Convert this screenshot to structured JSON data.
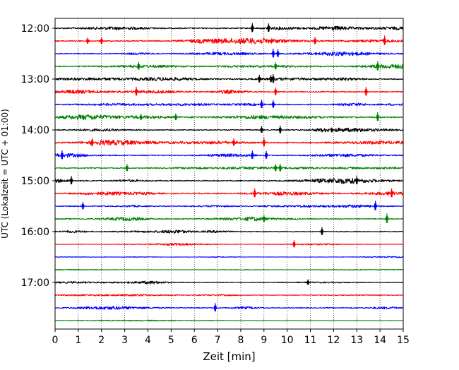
{
  "chart_data": {
    "type": "line",
    "title": "",
    "xlabel": "Zeit  [min]",
    "ylabel": "UTC (Lokalzeit = UTC + 01:00)",
    "xlim": [
      0,
      15
    ],
    "x_ticks": [
      0,
      1,
      2,
      3,
      4,
      5,
      6,
      7,
      8,
      9,
      10,
      11,
      12,
      13,
      14,
      15
    ],
    "x_tick_labels": [
      "0",
      "1",
      "2",
      "3",
      "4",
      "5",
      "6",
      "7",
      "8",
      "9",
      "10",
      "11",
      "12",
      "13",
      "14",
      "15"
    ],
    "y_tick_labels": [
      "12:00",
      "13:00",
      "14:00",
      "15:00",
      "16:00",
      "17:00"
    ],
    "y_tick_row_index": [
      0,
      4,
      8,
      12,
      16,
      20
    ],
    "grid": {
      "vertical_dotted": true,
      "horizontal": false
    },
    "row_interval_minutes": 15,
    "colors_cycle": [
      "#000000",
      "#ff0000",
      "#0000ff",
      "#008000"
    ],
    "series": [
      {
        "start": "12:00",
        "color": "#000000",
        "amplitude": 0.55,
        "spikes": [
          {
            "t": 8.5,
            "a": 1.5
          },
          {
            "t": 9.2,
            "a": 1.4
          }
        ]
      },
      {
        "start": "12:15",
        "color": "#ff0000",
        "amplitude": 0.6,
        "spikes": [
          {
            "t": 1.4,
            "a": 1.0
          },
          {
            "t": 2.0,
            "a": 1.1
          },
          {
            "t": 11.2,
            "a": 1.2
          },
          {
            "t": 14.2,
            "a": 1.6
          }
        ]
      },
      {
        "start": "12:30",
        "color": "#0000ff",
        "amplitude": 0.5,
        "spikes": [
          {
            "t": 9.4,
            "a": 1.5
          },
          {
            "t": 9.6,
            "a": 1.3
          }
        ]
      },
      {
        "start": "12:45",
        "color": "#008000",
        "amplitude": 0.5,
        "spikes": [
          {
            "t": 3.6,
            "a": 1.3
          },
          {
            "t": 9.5,
            "a": 1.2
          },
          {
            "t": 13.9,
            "a": 1.6
          }
        ]
      },
      {
        "start": "13:00",
        "color": "#000000",
        "amplitude": 0.55,
        "spikes": [
          {
            "t": 8.8,
            "a": 1.3
          },
          {
            "t": 9.3,
            "a": 1.2
          },
          {
            "t": 9.4,
            "a": 1.5
          }
        ]
      },
      {
        "start": "13:15",
        "color": "#ff0000",
        "amplitude": 0.5,
        "spikes": [
          {
            "t": 3.5,
            "a": 1.5
          },
          {
            "t": 9.5,
            "a": 1.3
          },
          {
            "t": 13.4,
            "a": 1.5
          }
        ]
      },
      {
        "start": "13:30",
        "color": "#0000ff",
        "amplitude": 0.5,
        "spikes": [
          {
            "t": 8.9,
            "a": 1.4
          },
          {
            "t": 9.4,
            "a": 1.3
          }
        ]
      },
      {
        "start": "13:45",
        "color": "#008000",
        "amplitude": 0.6,
        "spikes": [
          {
            "t": 3.7,
            "a": 1.0
          },
          {
            "t": 5.2,
            "a": 1.1
          },
          {
            "t": 13.9,
            "a": 1.5
          }
        ]
      },
      {
        "start": "14:00",
        "color": "#000000",
        "amplitude": 0.5,
        "spikes": [
          {
            "t": 8.9,
            "a": 1.1
          },
          {
            "t": 9.7,
            "a": 1.3
          }
        ]
      },
      {
        "start": "14:15",
        "color": "#ff0000",
        "amplitude": 0.6,
        "spikes": [
          {
            "t": 1.6,
            "a": 1.4
          },
          {
            "t": 7.7,
            "a": 1.3
          },
          {
            "t": 9.0,
            "a": 1.5
          }
        ]
      },
      {
        "start": "14:30",
        "color": "#0000ff",
        "amplitude": 0.5,
        "spikes": [
          {
            "t": 0.3,
            "a": 1.5
          },
          {
            "t": 8.5,
            "a": 1.4
          },
          {
            "t": 9.1,
            "a": 1.3
          }
        ]
      },
      {
        "start": "14:45",
        "color": "#008000",
        "amplitude": 0.5,
        "spikes": [
          {
            "t": 3.1,
            "a": 1.2
          },
          {
            "t": 9.5,
            "a": 1.2
          },
          {
            "t": 9.7,
            "a": 1.3
          }
        ]
      },
      {
        "start": "15:00",
        "color": "#000000",
        "amplitude": 0.55,
        "spikes": [
          {
            "t": 0.7,
            "a": 1.4
          },
          {
            "t": 13.0,
            "a": 1.4
          }
        ]
      },
      {
        "start": "15:15",
        "color": "#ff0000",
        "amplitude": 0.6,
        "spikes": [
          {
            "t": 8.6,
            "a": 1.5
          },
          {
            "t": 14.5,
            "a": 1.5
          }
        ]
      },
      {
        "start": "15:30",
        "color": "#0000ff",
        "amplitude": 0.5,
        "spikes": [
          {
            "t": 1.2,
            "a": 1.2
          },
          {
            "t": 13.8,
            "a": 1.6
          }
        ]
      },
      {
        "start": "15:45",
        "color": "#008000",
        "amplitude": 0.5,
        "spikes": [
          {
            "t": 9.0,
            "a": 1.2
          },
          {
            "t": 14.3,
            "a": 1.6
          }
        ]
      },
      {
        "start": "16:00",
        "color": "#000000",
        "amplitude": 0.45,
        "spikes": [
          {
            "t": 11.5,
            "a": 1.3
          }
        ]
      },
      {
        "start": "16:15",
        "color": "#ff0000",
        "amplitude": 0.18,
        "spikes": [
          {
            "t": 10.3,
            "a": 1.2
          }
        ]
      },
      {
        "start": "16:30",
        "color": "#0000ff",
        "amplitude": 0.15,
        "spikes": []
      },
      {
        "start": "16:45",
        "color": "#008000",
        "amplitude": 0.15,
        "spikes": []
      },
      {
        "start": "17:00",
        "color": "#000000",
        "amplitude": 0.3,
        "spikes": [
          {
            "t": 10.9,
            "a": 0.9
          }
        ]
      },
      {
        "start": "17:15",
        "color": "#ff0000",
        "amplitude": 0.25,
        "spikes": []
      },
      {
        "start": "17:30",
        "color": "#0000ff",
        "amplitude": 0.4,
        "spikes": [
          {
            "t": 6.9,
            "a": 1.4
          }
        ]
      },
      {
        "start": "17:45",
        "color": "#008000",
        "amplitude": 0.15,
        "spikes": []
      }
    ]
  }
}
